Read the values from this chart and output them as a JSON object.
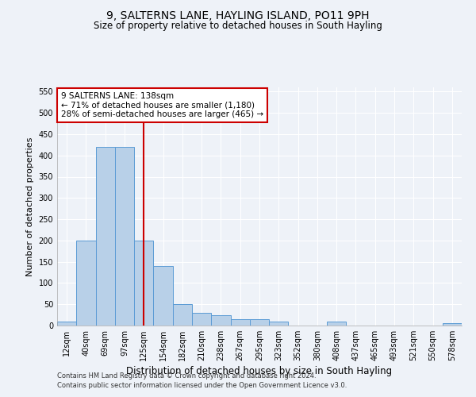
{
  "title": "9, SALTERNS LANE, HAYLING ISLAND, PO11 9PH",
  "subtitle": "Size of property relative to detached houses in South Hayling",
  "xlabel": "Distribution of detached houses by size in South Hayling",
  "ylabel": "Number of detached properties",
  "categories": [
    "12sqm",
    "40sqm",
    "69sqm",
    "97sqm",
    "125sqm",
    "154sqm",
    "182sqm",
    "210sqm",
    "238sqm",
    "267sqm",
    "295sqm",
    "323sqm",
    "352sqm",
    "380sqm",
    "408sqm",
    "437sqm",
    "465sqm",
    "493sqm",
    "521sqm",
    "550sqm",
    "578sqm"
  ],
  "values": [
    10,
    200,
    420,
    420,
    200,
    140,
    50,
    30,
    25,
    15,
    15,
    10,
    0,
    0,
    10,
    0,
    0,
    0,
    0,
    0,
    5
  ],
  "bar_color": "#b8d0e8",
  "bar_edge_color": "#5b9bd5",
  "vline_x_index": 4,
  "vline_color": "#cc0000",
  "annotation_text": "9 SALTERNS LANE: 138sqm\n← 71% of detached houses are smaller (1,180)\n28% of semi-detached houses are larger (465) →",
  "annotation_box_color": "#ffffff",
  "annotation_box_edge_color": "#cc0000",
  "ylim": [
    0,
    560
  ],
  "yticks": [
    0,
    50,
    100,
    150,
    200,
    250,
    300,
    350,
    400,
    450,
    500,
    550
  ],
  "footer_line1": "Contains HM Land Registry data © Crown copyright and database right 2024.",
  "footer_line2": "Contains public sector information licensed under the Open Government Licence v3.0.",
  "bg_color": "#eef2f8",
  "plot_bg_color": "#eef2f8",
  "grid_color": "#ffffff",
  "title_fontsize": 10,
  "subtitle_fontsize": 8.5,
  "xlabel_fontsize": 8.5,
  "ylabel_fontsize": 8,
  "tick_fontsize": 7,
  "footer_fontsize": 6,
  "annotation_fontsize": 7.5
}
